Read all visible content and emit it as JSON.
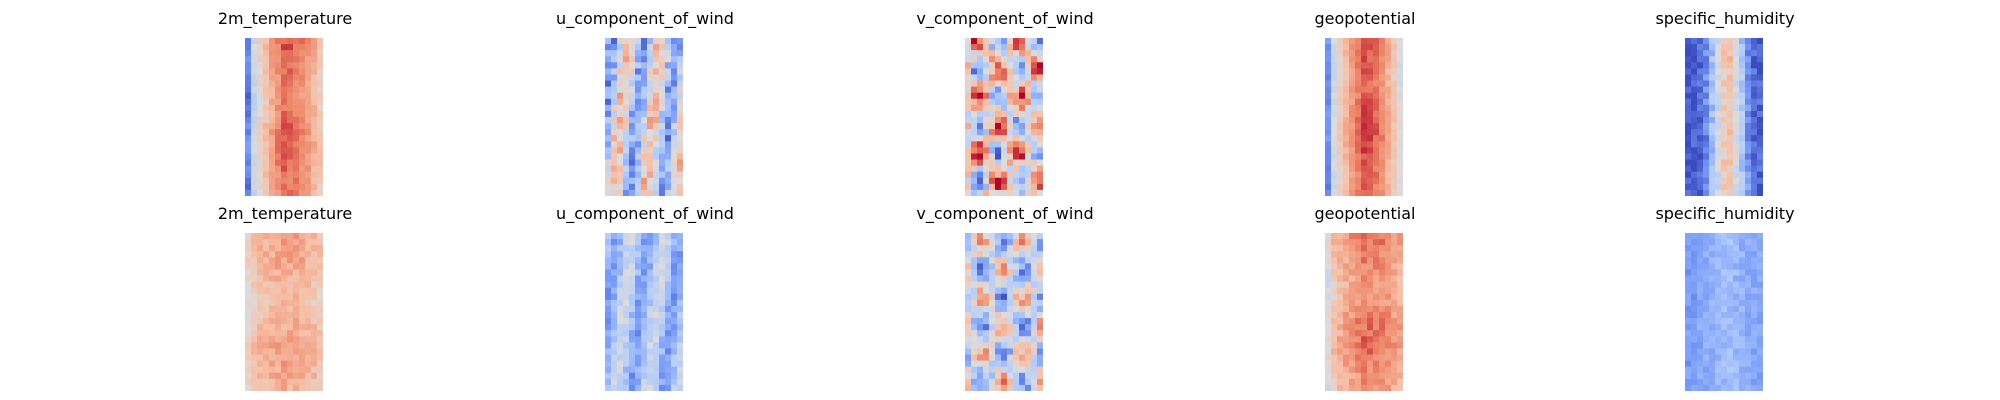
{
  "chart_data": {
    "type": "heatmap",
    "colormap": "coolwarm",
    "colormap_stops": [
      "#3b4cc0",
      "#7396f5",
      "#b0cbfc",
      "#dddcdc",
      "#f6bfa6",
      "#ec8063",
      "#b40426"
    ],
    "axes_visible": false,
    "grid": false,
    "legend": "none",
    "panels": [
      {
        "row": 1,
        "col": 1,
        "title": "2m_temperature",
        "pattern": "band",
        "description_values": {
          "left_edge_level": 0.12,
          "center_level": 0.86,
          "right_edge_level": 0.62,
          "noise": 0.05
        }
      },
      {
        "row": 1,
        "col": 2,
        "title": "u_component_of_wind",
        "pattern": "streaks",
        "description_values": {
          "base_level": 0.42,
          "noise": 0.3
        }
      },
      {
        "row": 1,
        "col": 3,
        "title": "v_component_of_wind",
        "pattern": "cells",
        "description_values": {
          "base_level": 0.55,
          "noise": 0.38
        }
      },
      {
        "row": 1,
        "col": 4,
        "title": "geopotential",
        "pattern": "band",
        "description_values": {
          "left_edge_level": 0.15,
          "center_level": 0.9,
          "right_edge_level": 0.5,
          "noise": 0.04
        }
      },
      {
        "row": 1,
        "col": 5,
        "title": "specific_humidity",
        "pattern": "humid",
        "description_values": {
          "left_edge_level": 0.05,
          "center_level": 0.7,
          "right_edge_level": 0.12,
          "noise": 0.08
        }
      },
      {
        "row": 2,
        "col": 1,
        "title": "2m_temperature",
        "pattern": "band",
        "description_values": {
          "left_edge_level": 0.55,
          "center_level": 0.72,
          "right_edge_level": 0.62,
          "noise": 0.06
        }
      },
      {
        "row": 2,
        "col": 2,
        "title": "u_component_of_wind",
        "pattern": "streaks",
        "description_values": {
          "base_level": 0.32,
          "noise": 0.16
        }
      },
      {
        "row": 2,
        "col": 3,
        "title": "v_component_of_wind",
        "pattern": "cells",
        "description_values": {
          "base_level": 0.45,
          "noise": 0.3
        }
      },
      {
        "row": 2,
        "col": 4,
        "title": "geopotential",
        "pattern": "band",
        "description_values": {
          "left_edge_level": 0.5,
          "center_level": 0.82,
          "right_edge_level": 0.72,
          "noise": 0.06
        }
      },
      {
        "row": 2,
        "col": 5,
        "title": "specific_humidity",
        "pattern": "humid",
        "description_values": {
          "left_edge_level": 0.22,
          "center_level": 0.3,
          "right_edge_level": 0.22,
          "noise": 0.05
        }
      }
    ]
  }
}
